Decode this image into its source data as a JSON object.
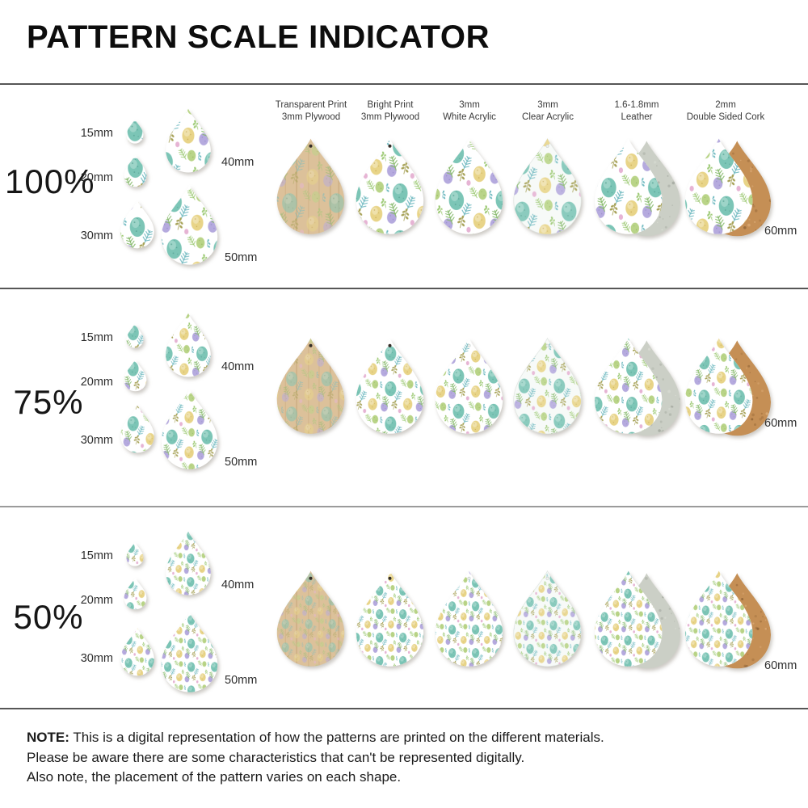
{
  "title": "PATTERN SCALE INDICATOR",
  "material_columns": [
    {
      "line1": "Transparent Print",
      "line2": "3mm Plywood"
    },
    {
      "line1": "Bright Print",
      "line2": "3mm Plywood"
    },
    {
      "line1": "3mm",
      "line2": "White Acrylic"
    },
    {
      "line1": "3mm",
      "line2": "Clear Acrylic"
    },
    {
      "line1": "1.6-1.8mm",
      "line2": "Leather"
    },
    {
      "line1": "2mm",
      "line2": "Double Sided Cork"
    }
  ],
  "size_labels": {
    "s15": "15mm",
    "s20": "20mm",
    "s30": "30mm",
    "s40": "40mm",
    "s50": "50mm",
    "s60": "60mm"
  },
  "rows": [
    {
      "scale_label": "100%"
    },
    {
      "scale_label": "75%"
    },
    {
      "scale_label": "50%"
    }
  ],
  "note": {
    "label": "NOTE:",
    "lines": [
      "This is a digital representation of how the patterns are printed on the different materials.",
      "Please be aware there are some characteristics that can't be represented digitally.",
      "Also note, the placement of the pattern varies on each shape."
    ]
  },
  "colors": {
    "egg_teal": "#7cc5b6",
    "egg_yellow": "#e8d488",
    "egg_green": "#b9d488",
    "egg_lavender": "#b5aade",
    "egg_pink": "#e6b4d4",
    "frond_green": "#85b96a",
    "frond_teal": "#6fb9c0",
    "frond_olive": "#a7a258",
    "frond_light": "#9cc973",
    "wood": "#dcc19a",
    "cork": "#c58f55",
    "suede": "#cbcfc6"
  }
}
